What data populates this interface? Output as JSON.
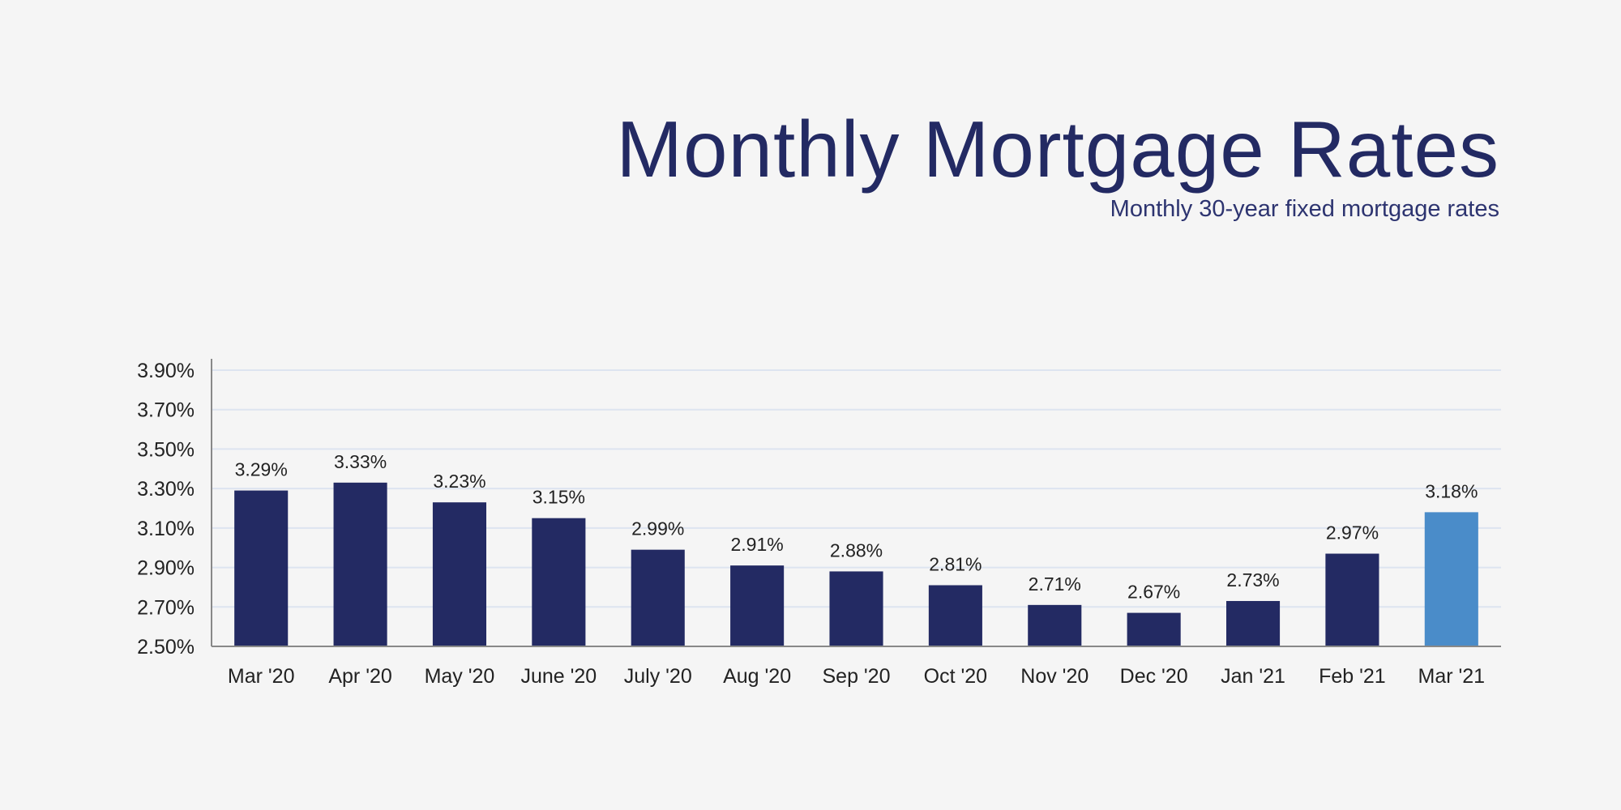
{
  "chart_data": {
    "type": "bar",
    "title": "Monthly Mortgage Rates",
    "subtitle": "Monthly 30-year fixed mortgage rates",
    "xlabel": "",
    "ylabel": "",
    "categories": [
      "Mar '20",
      "Apr '20",
      "May '20",
      "June '20",
      "July '20",
      "Aug '20",
      "Sep '20",
      "Oct '20",
      "Nov '20",
      "Dec '20",
      "Jan '21",
      "Feb '21",
      "Mar '21"
    ],
    "values": [
      3.29,
      3.33,
      3.23,
      3.15,
      2.99,
      2.91,
      2.88,
      2.81,
      2.71,
      2.67,
      2.73,
      2.97,
      3.18
    ],
    "data_labels": [
      "3.29%",
      "3.33%",
      "3.23%",
      "3.15%",
      "2.99%",
      "2.91%",
      "2.88%",
      "2.81%",
      "2.71%",
      "2.67%",
      "2.73%",
      "2.97%",
      "3.18%"
    ],
    "ylim": [
      2.5,
      3.9
    ],
    "yticks": [
      2.5,
      2.7,
      2.9,
      3.1,
      3.3,
      3.5,
      3.7,
      3.9
    ],
    "ytick_labels": [
      "2.50%",
      "2.70%",
      "2.90%",
      "3.10%",
      "3.30%",
      "3.50%",
      "3.70%",
      "3.90%"
    ],
    "grid": true,
    "legend": "none",
    "colors": {
      "bar": "#232a63",
      "highlight": "#4a8cc9",
      "highlight_category": "Mar '21",
      "grid": "#dde4f0",
      "title": "#232a63"
    }
  }
}
